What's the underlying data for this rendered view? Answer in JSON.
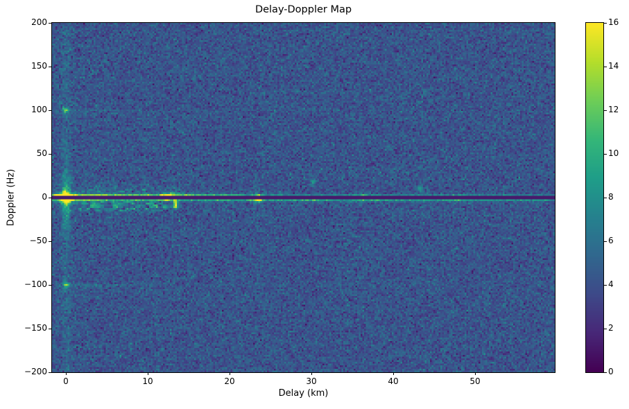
{
  "figure": {
    "background": "#ffffff"
  },
  "chart_data": {
    "type": "heatmap",
    "title": "Delay-Doppler Map",
    "xlabel": "Delay (km)",
    "ylabel": "Doppler (Hz)",
    "xlim": [
      -1.7,
      59.75
    ],
    "ylim": [
      -200,
      200
    ],
    "x_ticks": [
      0,
      10,
      20,
      30,
      40,
      50
    ],
    "y_ticks": [
      200,
      150,
      100,
      50,
      0,
      -50,
      -100,
      -150,
      -200
    ],
    "colormap": "viridis",
    "colormap_stops": [
      "#440154",
      "#482878",
      "#3e4a89",
      "#31688e",
      "#26828e",
      "#1f9e89",
      "#35b779",
      "#6ece58",
      "#b5de2b",
      "#fde725"
    ],
    "colorbar": {
      "vmin": 0,
      "vmax": 16,
      "ticks": [
        0,
        2,
        4,
        6,
        8,
        10,
        12,
        14,
        16
      ]
    },
    "noise": {
      "mean": 4.2,
      "std": 1.05,
      "seed": 42
    },
    "features": {
      "zero_notch": {
        "doppler": 0,
        "half_width_hz": 1.0,
        "value": 1.2
      },
      "ridge": {
        "upper_hz": 2.3,
        "lower_hz": -2.6,
        "sigma_hz": 1.2,
        "base_amp": 6.0,
        "decay_km": 28,
        "floor_amp": 2.5
      },
      "ridge_bumps": [
        {
          "delay": 12.4,
          "amp": 4.5,
          "sigma": 0.5
        },
        {
          "delay": 23.5,
          "amp": 4.5,
          "sigma": 0.35
        },
        {
          "delay": 36.0,
          "amp": 1.6,
          "sigma": 0.5
        },
        {
          "delay": 48.0,
          "amp": 1.2,
          "sigma": 0.6
        }
      ],
      "origin_blob": {
        "delay": 0,
        "doppler": 0,
        "amp": 13,
        "sigma_delay": 0.45,
        "sigma_doppler": 4
      },
      "origin_streak": {
        "amp": 8,
        "doppler_decay": 20,
        "sigma_delay": 0.32,
        "faint_amp": 1.0
      },
      "harmonic_dots": [
        {
          "delay": 0,
          "doppler": 100,
          "amp": 7,
          "line_amp": 1.2,
          "line_reach_km": 9
        },
        {
          "delay": 0,
          "doppler": -100,
          "amp": 7,
          "line_amp": 1.7,
          "line_reach_km": 14
        }
      ],
      "arc": {
        "delay": 13.3,
        "doppler_from": -2.5,
        "doppler_to": -14.5,
        "amp": 9.5,
        "sigma": 0.14,
        "bow": 0.1
      },
      "flare": {
        "delay": 13.0,
        "amp": 2.6,
        "sigma_delay": 0.2,
        "decay_hz": 9
      },
      "spots": [
        {
          "delay": 30.2,
          "doppler": 18,
          "amp": 4.5,
          "sd": 0.22,
          "sf": 2.5
        },
        {
          "delay": 43.3,
          "doppler": 10,
          "amp": 4.5,
          "sd": 0.25,
          "sf": 3.0
        },
        {
          "delay": 23.6,
          "doppler": -4,
          "amp": 3.0,
          "sd": 0.3,
          "sf": 2.0
        },
        {
          "delay": 36.5,
          "doppler": 3,
          "amp": 2.0,
          "sd": 0.4,
          "sf": 2.0
        }
      ],
      "vertical_glow": {
        "delay": 23.5,
        "amp": 1.0,
        "sigma_delay": 0.35,
        "sigma_doppler": 9
      },
      "clutter_below": {
        "d0": 0.3,
        "d1": 13.8,
        "f0": -18,
        "f1": -3,
        "cell_km": 0.55,
        "cell_hz": 2.3,
        "threshold": 0.42,
        "gain": 6.0,
        "center_hz": -9.5,
        "sigma_hz": 5
      },
      "clutter_above": {
        "d0": 0.8,
        "d1": 14.0,
        "f0": 3,
        "f1": 20,
        "cell_km": 0.5,
        "cell_hz": 2.6,
        "threshold": 0.55,
        "gain": 3.5,
        "center_hz": 7,
        "sigma_hz": 5
      }
    }
  }
}
